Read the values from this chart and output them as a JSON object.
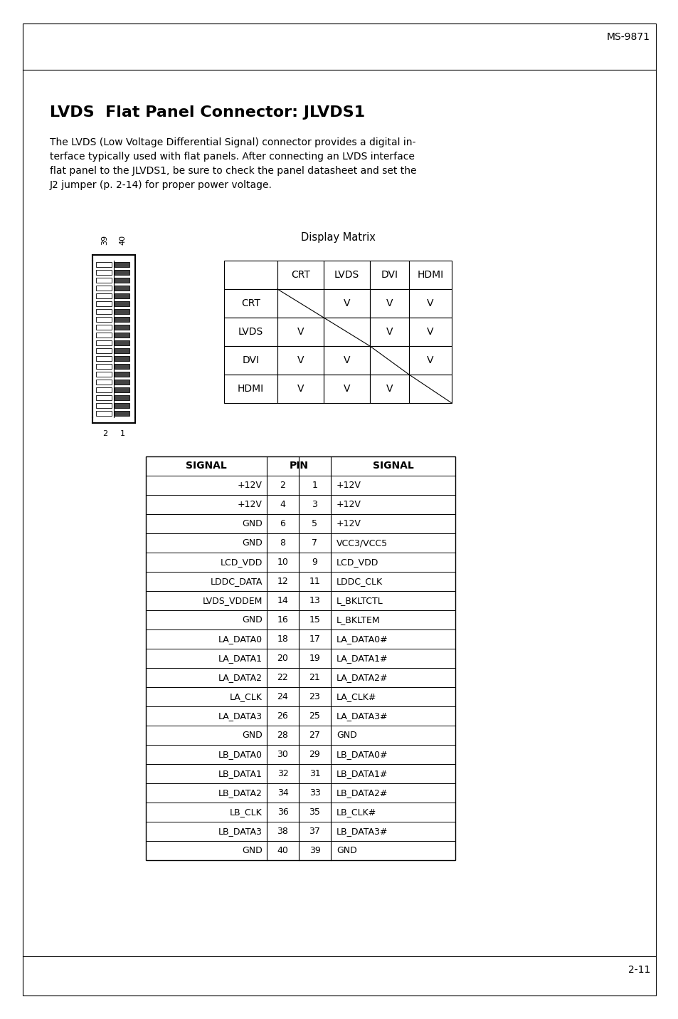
{
  "page_header": "MS-9871",
  "page_footer": "2-11",
  "section_title": "LVDS  Flat Panel Connector: JLVDS1",
  "body_lines": [
    "The LVDS (Low Voltage Differential Signal) connector provides a digital in-",
    "terface typically used with flat panels. After connecting an LVDS interface",
    "flat panel to the JLVDS1, be sure to check the panel datasheet and set the",
    "J2 jumper (p. 2-14) for proper power voltage."
  ],
  "display_matrix_title": "Display Matrix",
  "display_matrix_headers": [
    "",
    "CRT",
    "LVDS",
    "DVI",
    "HDMI"
  ],
  "display_matrix_rows": [
    [
      "CRT",
      "",
      "V",
      "V",
      "V"
    ],
    [
      "LVDS",
      "V",
      "",
      "V",
      "V"
    ],
    [
      "DVI",
      "V",
      "V",
      "",
      "V"
    ],
    [
      "HDMI",
      "V",
      "V",
      "V",
      ""
    ]
  ],
  "pin_table_headers": [
    "SIGNAL",
    "PIN",
    "SIGNAL"
  ],
  "pin_table_rows": [
    [
      "+12V",
      "2",
      "1",
      "+12V"
    ],
    [
      "+12V",
      "4",
      "3",
      "+12V"
    ],
    [
      "GND",
      "6",
      "5",
      "+12V"
    ],
    [
      "GND",
      "8",
      "7",
      "VCC3/VCC5"
    ],
    [
      "LCD_VDD",
      "10",
      "9",
      "LCD_VDD"
    ],
    [
      "LDDC_DATA",
      "12",
      "11",
      "LDDC_CLK"
    ],
    [
      "LVDS_VDDEM",
      "14",
      "13",
      "L_BKLTCTL"
    ],
    [
      "GND",
      "16",
      "15",
      "L_BKLTEM"
    ],
    [
      "LA_DATA0",
      "18",
      "17",
      "LA_DATA0#"
    ],
    [
      "LA_DATA1",
      "20",
      "19",
      "LA_DATA1#"
    ],
    [
      "LA_DATA2",
      "22",
      "21",
      "LA_DATA2#"
    ],
    [
      "LA_CLK",
      "24",
      "23",
      "LA_CLK#"
    ],
    [
      "LA_DATA3",
      "26",
      "25",
      "LA_DATA3#"
    ],
    [
      "GND",
      "28",
      "27",
      "GND"
    ],
    [
      "LB_DATA0",
      "30",
      "29",
      "LB_DATA0#"
    ],
    [
      "LB_DATA1",
      "32",
      "31",
      "LB_DATA1#"
    ],
    [
      "LB_DATA2",
      "34",
      "33",
      "LB_DATA2#"
    ],
    [
      "LB_CLK",
      "36",
      "35",
      "LB_CLK#"
    ],
    [
      "LB_DATA3",
      "38",
      "37",
      "LB_DATA3#"
    ],
    [
      "GND",
      "40",
      "39",
      "GND"
    ]
  ],
  "bg_color": "#ffffff",
  "text_color": "#000000",
  "connector_label_top": [
    "39",
    "40"
  ],
  "connector_label_bot": [
    "1",
    "2"
  ]
}
